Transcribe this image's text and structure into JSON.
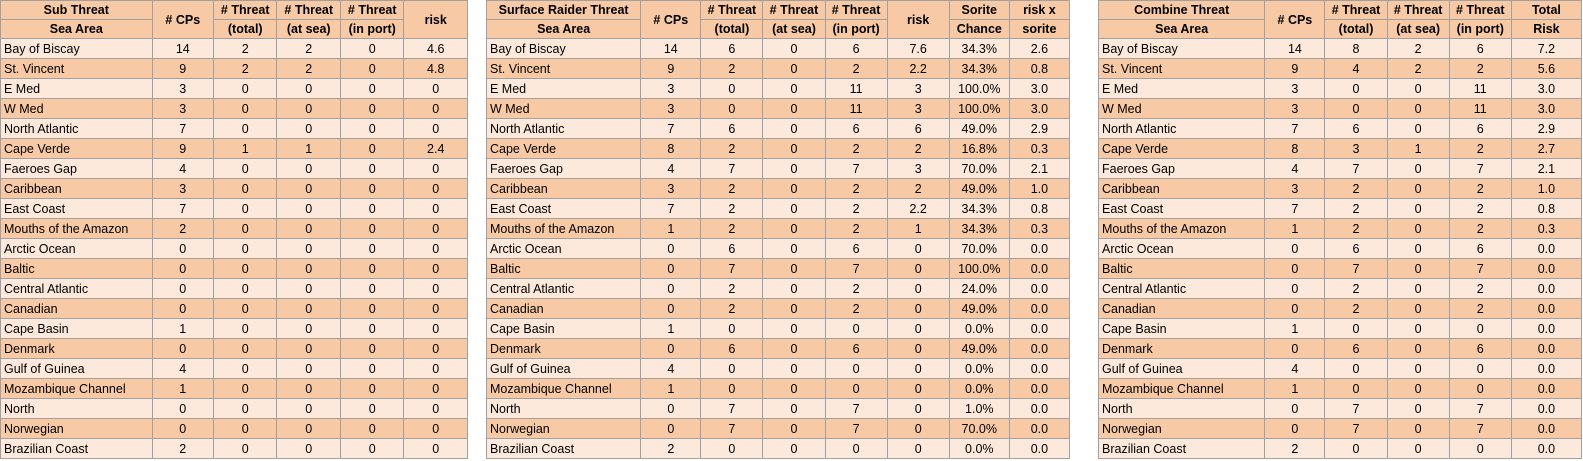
{
  "colors": {
    "header": "#f8c9a5",
    "row_odd": "#fde9dc",
    "row_even": "#f8c9a5"
  },
  "tables": [
    {
      "id": "t1",
      "name_col_width": 148,
      "col_widths": [
        62,
        62,
        62,
        62,
        62
      ],
      "header_rows": [
        [
          "Sub Threat",
          "# CPs",
          "# Threat",
          "# Threat",
          "# Threat",
          "risk"
        ],
        [
          "Sea Area",
          "",
          "(total)",
          "(at sea)",
          "(in port)",
          ""
        ]
      ],
      "rows": [
        [
          "Bay of Biscay",
          "14",
          "2",
          "2",
          "0",
          "4.6"
        ],
        [
          "St. Vincent",
          "9",
          "2",
          "2",
          "0",
          "4.8"
        ],
        [
          "E Med",
          "3",
          "0",
          "0",
          "0",
          "0"
        ],
        [
          "W Med",
          "3",
          "0",
          "0",
          "0",
          "0"
        ],
        [
          "North Atlantic",
          "7",
          "0",
          "0",
          "0",
          "0"
        ],
        [
          "Cape Verde",
          "9",
          "1",
          "1",
          "0",
          "2.4"
        ],
        [
          "Faeroes Gap",
          "4",
          "0",
          "0",
          "0",
          "0"
        ],
        [
          "Caribbean",
          "3",
          "0",
          "0",
          "0",
          "0"
        ],
        [
          "East Coast",
          "7",
          "0",
          "0",
          "0",
          "0"
        ],
        [
          "Mouths of the Amazon",
          "2",
          "0",
          "0",
          "0",
          "0"
        ],
        [
          "Arctic Ocean",
          "0",
          "0",
          "0",
          "0",
          "0"
        ],
        [
          "Baltic",
          "0",
          "0",
          "0",
          "0",
          "0"
        ],
        [
          "Central Atlantic",
          "0",
          "0",
          "0",
          "0",
          "0"
        ],
        [
          "Canadian",
          "0",
          "0",
          "0",
          "0",
          "0"
        ],
        [
          "Cape Basin",
          "1",
          "0",
          "0",
          "0",
          "0"
        ],
        [
          "Denmark",
          "0",
          "0",
          "0",
          "0",
          "0"
        ],
        [
          "Gulf of Guinea",
          "4",
          "0",
          "0",
          "0",
          "0"
        ],
        [
          "Mozambique Channel",
          "1",
          "0",
          "0",
          "0",
          "0"
        ],
        [
          "North",
          "0",
          "0",
          "0",
          "0",
          "0"
        ],
        [
          "Norwegian",
          "0",
          "0",
          "0",
          "0",
          "0"
        ],
        [
          "Brazilian Coast",
          "2",
          "0",
          "0",
          "0",
          "0"
        ]
      ]
    },
    {
      "id": "t2",
      "name_col_width": 154,
      "col_widths": [
        62,
        62,
        62,
        62,
        62,
        60,
        60
      ],
      "header_rows": [
        [
          "Surface Raider Threat",
          "# CPs",
          "# Threat",
          "# Threat",
          "# Threat",
          "risk",
          "Sorite",
          "risk x"
        ],
        [
          "Sea Area",
          "",
          "(total)",
          "(at sea)",
          "(in port)",
          "",
          "Chance",
          "sorite"
        ]
      ],
      "rows": [
        [
          "Bay of Biscay",
          "14",
          "6",
          "0",
          "6",
          "7.6",
          "34.3%",
          "2.6"
        ],
        [
          "St. Vincent",
          "9",
          "2",
          "0",
          "2",
          "2.2",
          "34.3%",
          "0.8"
        ],
        [
          "E Med",
          "3",
          "0",
          "0",
          "11",
          "3",
          "100.0%",
          "3.0"
        ],
        [
          "W Med",
          "3",
          "0",
          "0",
          "11",
          "3",
          "100.0%",
          "3.0"
        ],
        [
          "North Atlantic",
          "7",
          "6",
          "0",
          "6",
          "6",
          "49.0%",
          "2.9"
        ],
        [
          "Cape Verde",
          "8",
          "2",
          "0",
          "2",
          "2",
          "16.8%",
          "0.3"
        ],
        [
          "Faeroes Gap",
          "4",
          "7",
          "0",
          "7",
          "3",
          "70.0%",
          "2.1"
        ],
        [
          "Caribbean",
          "3",
          "2",
          "0",
          "2",
          "2",
          "49.0%",
          "1.0"
        ],
        [
          "East Coast",
          "7",
          "2",
          "0",
          "2",
          "2.2",
          "34.3%",
          "0.8"
        ],
        [
          "Mouths of the Amazon",
          "1",
          "2",
          "0",
          "2",
          "1",
          "34.3%",
          "0.3"
        ],
        [
          "Arctic Ocean",
          "0",
          "6",
          "0",
          "6",
          "0",
          "70.0%",
          "0.0"
        ],
        [
          "Baltic",
          "0",
          "7",
          "0",
          "7",
          "0",
          "100.0%",
          "0.0"
        ],
        [
          "Central Atlantic",
          "0",
          "2",
          "0",
          "2",
          "0",
          "24.0%",
          "0.0"
        ],
        [
          "Canadian",
          "0",
          "2",
          "0",
          "2",
          "0",
          "49.0%",
          "0.0"
        ],
        [
          "Cape Basin",
          "1",
          "0",
          "0",
          "0",
          "0",
          "0.0%",
          "0.0"
        ],
        [
          "Denmark",
          "0",
          "6",
          "0",
          "6",
          "0",
          "49.0%",
          "0.0"
        ],
        [
          "Gulf of Guinea",
          "4",
          "0",
          "0",
          "0",
          "0",
          "0.0%",
          "0.0"
        ],
        [
          "Mozambique Channel",
          "1",
          "0",
          "0",
          "0",
          "0",
          "0.0%",
          "0.0"
        ],
        [
          "North",
          "0",
          "7",
          "0",
          "7",
          "0",
          "1.0%",
          "0.0"
        ],
        [
          "Norwegian",
          "0",
          "7",
          "0",
          "7",
          "0",
          "70.0%",
          "0.0"
        ],
        [
          "Brazilian Coast",
          "2",
          "0",
          "0",
          "0",
          "0",
          "0.0%",
          "0.0"
        ]
      ]
    },
    {
      "id": "t3",
      "name_col_width": 166,
      "col_widths": [
        62,
        62,
        62,
        62,
        70
      ],
      "header_rows": [
        [
          "Combine Threat",
          "# CPs",
          "# Threat",
          "# Threat",
          "# Threat",
          "Total"
        ],
        [
          "Sea Area",
          "",
          "(total)",
          "(at sea)",
          "(in port)",
          "Risk"
        ]
      ],
      "rows": [
        [
          "Bay of Biscay",
          "14",
          "8",
          "2",
          "6",
          "7.2"
        ],
        [
          "St. Vincent",
          "9",
          "4",
          "2",
          "2",
          "5.6"
        ],
        [
          "E Med",
          "3",
          "0",
          "0",
          "11",
          "3.0"
        ],
        [
          "W Med",
          "3",
          "0",
          "0",
          "11",
          "3.0"
        ],
        [
          "North Atlantic",
          "7",
          "6",
          "0",
          "6",
          "2.9"
        ],
        [
          "Cape Verde",
          "8",
          "3",
          "1",
          "2",
          "2.7"
        ],
        [
          "Faeroes Gap",
          "4",
          "7",
          "0",
          "7",
          "2.1"
        ],
        [
          "Caribbean",
          "3",
          "2",
          "0",
          "2",
          "1.0"
        ],
        [
          "East Coast",
          "7",
          "2",
          "0",
          "2",
          "0.8"
        ],
        [
          "Mouths of the Amazon",
          "1",
          "2",
          "0",
          "2",
          "0.3"
        ],
        [
          "Arctic Ocean",
          "0",
          "6",
          "0",
          "6",
          "0.0"
        ],
        [
          "Baltic",
          "0",
          "7",
          "0",
          "7",
          "0.0"
        ],
        [
          "Central Atlantic",
          "0",
          "2",
          "0",
          "2",
          "0.0"
        ],
        [
          "Canadian",
          "0",
          "2",
          "0",
          "2",
          "0.0"
        ],
        [
          "Cape Basin",
          "1",
          "0",
          "0",
          "0",
          "0.0"
        ],
        [
          "Denmark",
          "0",
          "6",
          "0",
          "6",
          "0.0"
        ],
        [
          "Gulf of Guinea",
          "4",
          "0",
          "0",
          "0",
          "0.0"
        ],
        [
          "Mozambique Channel",
          "1",
          "0",
          "0",
          "0",
          "0.0"
        ],
        [
          "North",
          "0",
          "7",
          "0",
          "7",
          "0.0"
        ],
        [
          "Norwegian",
          "0",
          "7",
          "0",
          "7",
          "0.0"
        ],
        [
          "Brazilian Coast",
          "2",
          "0",
          "0",
          "0",
          "0.0"
        ]
      ]
    }
  ]
}
